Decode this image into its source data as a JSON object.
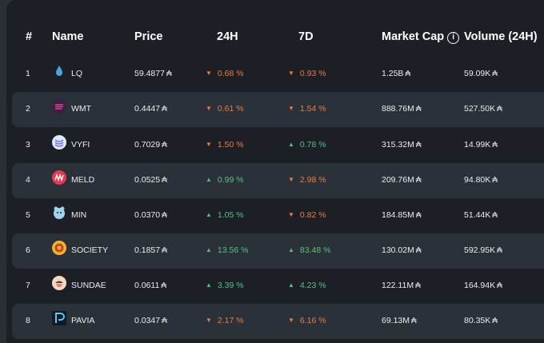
{
  "header": {
    "rank": "#",
    "name": "Name",
    "price": "Price",
    "h24": "24H",
    "d7": "7D",
    "market_cap": "Market Cap",
    "volume": "Volume (24H)",
    "info_icon": "i"
  },
  "currency_symbol": "₳",
  "colors": {
    "up": "#54c27a",
    "down": "#f07a3c",
    "alt_row": "#2b3139",
    "panel": "#1c2026"
  },
  "rows": [
    {
      "rank": "1",
      "icon": "lq-drop-icon",
      "name": "LQ",
      "price": "59.4877",
      "h24": "0.68 %",
      "h24_dir": "down",
      "d7": "0.93 %",
      "d7_dir": "down",
      "mcap": "1.25B",
      "vol": "59.09K"
    },
    {
      "rank": "2",
      "icon": "wmt-icon",
      "name": "WMT",
      "price": "0.4447",
      "h24": "0.61 %",
      "h24_dir": "down",
      "d7": "1.54 %",
      "d7_dir": "down",
      "mcap": "888.76M",
      "vol": "527.50K"
    },
    {
      "rank": "3",
      "icon": "vyfi-icon",
      "name": "VYFI",
      "price": "0.7029",
      "h24": "1.50 %",
      "h24_dir": "down",
      "d7": "0.78 %",
      "d7_dir": "up",
      "mcap": "315.32M",
      "vol": "14.99K"
    },
    {
      "rank": "4",
      "icon": "meld-icon",
      "name": "MELD",
      "price": "0.0525",
      "h24": "0.99 %",
      "h24_dir": "up",
      "d7": "2.98 %",
      "d7_dir": "down",
      "mcap": "209.76M",
      "vol": "94.80K"
    },
    {
      "rank": "5",
      "icon": "min-icon",
      "name": "MIN",
      "price": "0.0370",
      "h24": "1.05 %",
      "h24_dir": "up",
      "d7": "0.82 %",
      "d7_dir": "down",
      "mcap": "184.85M",
      "vol": "51.44K"
    },
    {
      "rank": "6",
      "icon": "society-icon",
      "name": "SOCIETY",
      "price": "0.1857",
      "h24": "13.56 %",
      "h24_dir": "up",
      "d7": "83.48 %",
      "d7_dir": "up",
      "mcap": "130.02M",
      "vol": "592.95K"
    },
    {
      "rank": "7",
      "icon": "sundae-icon",
      "name": "SUNDAE",
      "price": "0.0611",
      "h24": "3.39 %",
      "h24_dir": "up",
      "d7": "4.23 %",
      "d7_dir": "up",
      "mcap": "122.11M",
      "vol": "164.94K"
    },
    {
      "rank": "8",
      "icon": "pavia-icon",
      "name": "PAVIA",
      "price": "0.0347",
      "h24": "2.17 %",
      "h24_dir": "down",
      "d7": "6.16 %",
      "d7_dir": "down",
      "mcap": "69.13M",
      "vol": "80.35K"
    }
  ]
}
